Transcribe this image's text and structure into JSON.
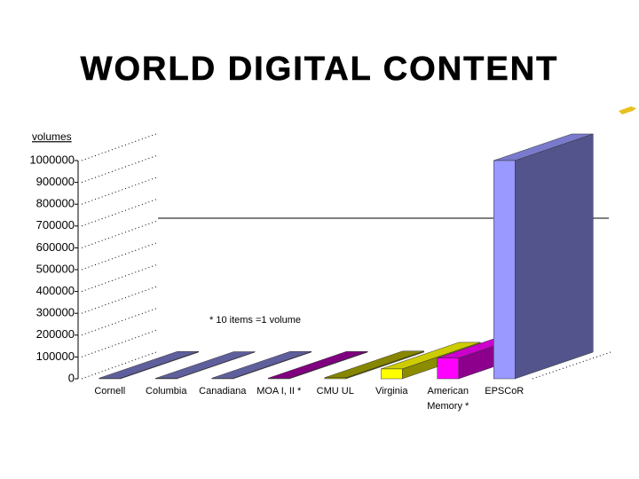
{
  "chart_data": {
    "type": "bar3d",
    "title": "WORLD DIGITAL CONTENT",
    "y_label": "volumes",
    "annotation": "* 10 items =1 volume",
    "categories": [
      "Cornell",
      "Columbia",
      "Canadiana",
      "MOA I, II *",
      "CMU UL",
      "Virginia",
      "American Memory *",
      "EPSCoR"
    ],
    "values": [
      3000,
      2000,
      3000,
      3000,
      5000,
      45000,
      95000,
      1000000
    ],
    "colors": [
      "#7777c4",
      "#7777c4",
      "#7777c4",
      "#a000a0",
      "#a8a800",
      "#ffff00",
      "#ff00ff",
      "#9999ff"
    ],
    "ylim": [
      0,
      1000000
    ],
    "yticks": [
      0,
      100000,
      200000,
      300000,
      400000,
      500000,
      600000,
      700000,
      800000,
      900000,
      1000000
    ],
    "grid": true
  }
}
